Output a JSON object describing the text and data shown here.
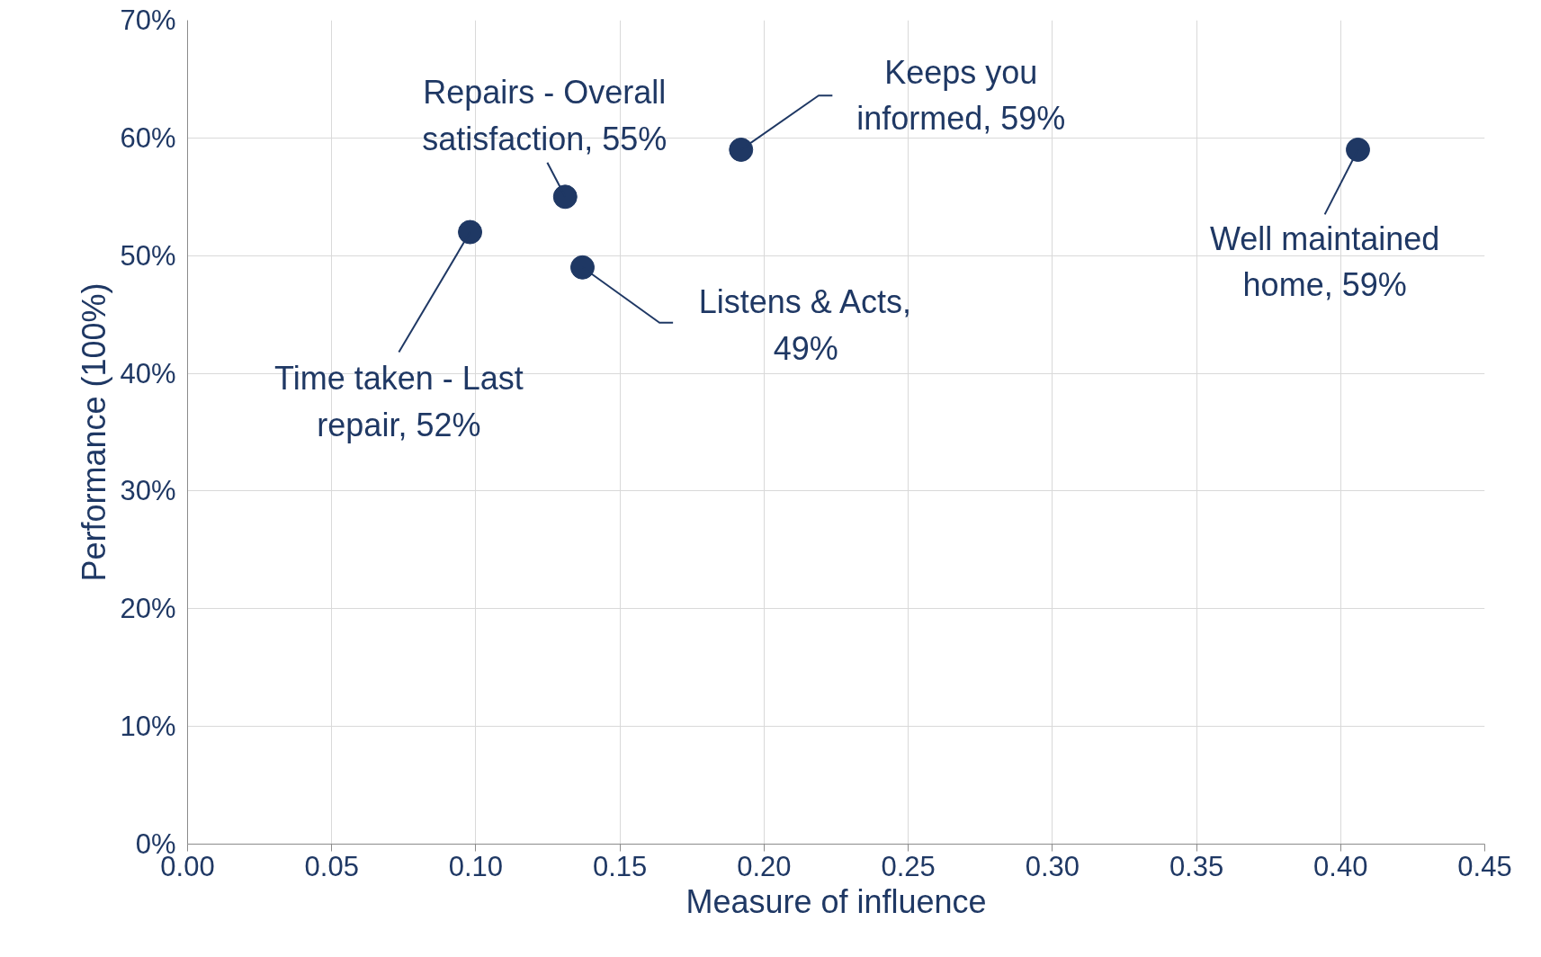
{
  "chart_data": {
    "type": "scatter",
    "xlabel": "Measure of influence",
    "ylabel": "Performance (100%)",
    "series": [
      {
        "color": "#1f3864",
        "x": [
          0.098,
          0.131,
          0.137,
          0.192,
          0.406
        ],
        "values": [
          52,
          55,
          49,
          59,
          59
        ]
      }
    ],
    "annotations": [
      {
        "text": "Time taken - Last\nrepair, 52%",
        "x": 0.098,
        "y": 52
      },
      {
        "text": "Repairs - Overall\nsatisfaction, 55%",
        "x": 0.131,
        "y": 55
      },
      {
        "text": "Listens & Acts,\n49%",
        "x": 0.137,
        "y": 49
      },
      {
        "text": "Keeps you\ninformed, 59%",
        "x": 0.192,
        "y": 59
      },
      {
        "text": "Well maintained\nhome, 59%",
        "x": 0.406,
        "y": 59
      }
    ],
    "xlim": [
      0,
      0.45
    ],
    "xticks": [
      {
        "value": 0,
        "label": "0.00"
      },
      0.05,
      {
        "value": 0.1,
        "label": "0.10"
      },
      0.15,
      {
        "value": 0.2,
        "label": "0.20"
      },
      0.25,
      {
        "value": 0.3,
        "label": "0.30"
      },
      0.35,
      {
        "value": 0.4,
        "label": "0.40"
      },
      0.45
    ],
    "ylim": [
      0,
      70
    ],
    "yticks": [
      {
        "value": 0,
        "label": "0%"
      },
      {
        "value": 10,
        "label": "10%"
      },
      {
        "value": 20,
        "label": "20%"
      },
      {
        "value": 30,
        "label": "30%"
      },
      {
        "value": 40,
        "label": "40%"
      },
      {
        "value": 50,
        "label": "50%"
      },
      {
        "value": 60,
        "label": "60%"
      },
      {
        "value": 70,
        "label": "70%"
      }
    ],
    "grid": true,
    "marker": "circle"
  }
}
